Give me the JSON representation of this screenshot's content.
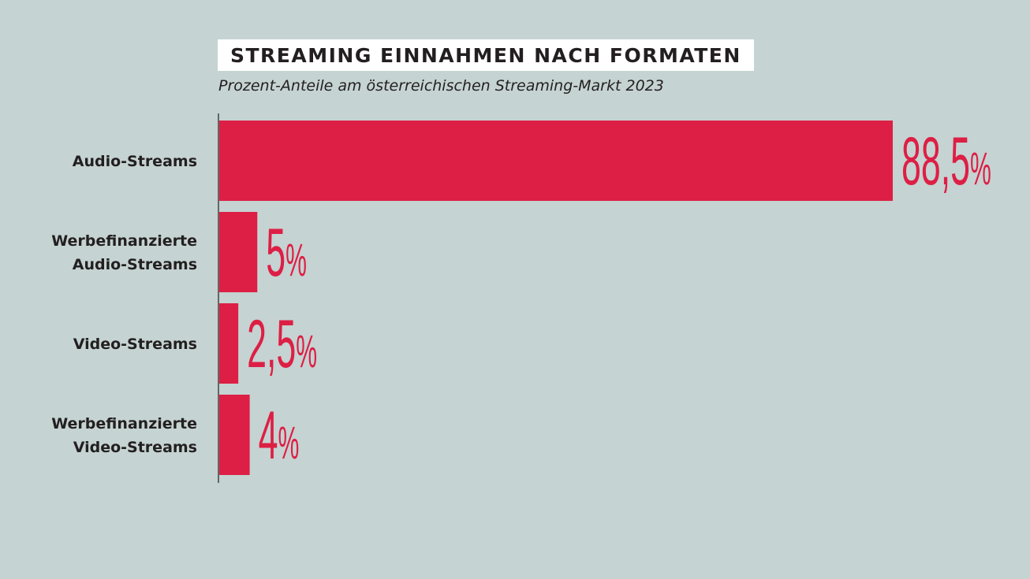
{
  "chart_data": {
    "type": "bar",
    "orientation": "horizontal",
    "title": "STREAMING EINNAHMEN NACH FORMATEN",
    "subtitle": "Prozent-Anteile am österreichischen Streaming-Markt 2023",
    "categories": [
      [
        "Audio-Streams"
      ],
      [
        "Werbefinanzierte",
        "Audio-Streams"
      ],
      [
        "Video-Streams"
      ],
      [
        "Werbefinanzierte",
        "Video-Streams"
      ]
    ],
    "values": [
      88.5,
      5,
      2.5,
      4
    ],
    "value_labels": [
      {
        "num": "88,5",
        "unit": "%"
      },
      {
        "num": "5",
        "unit": "%"
      },
      {
        "num": "2,5",
        "unit": "%"
      },
      {
        "num": "4",
        "unit": "%"
      }
    ],
    "bar_color": "#dd1f45",
    "background_color": "#c5d3d2",
    "grid": false,
    "legend": "none"
  }
}
